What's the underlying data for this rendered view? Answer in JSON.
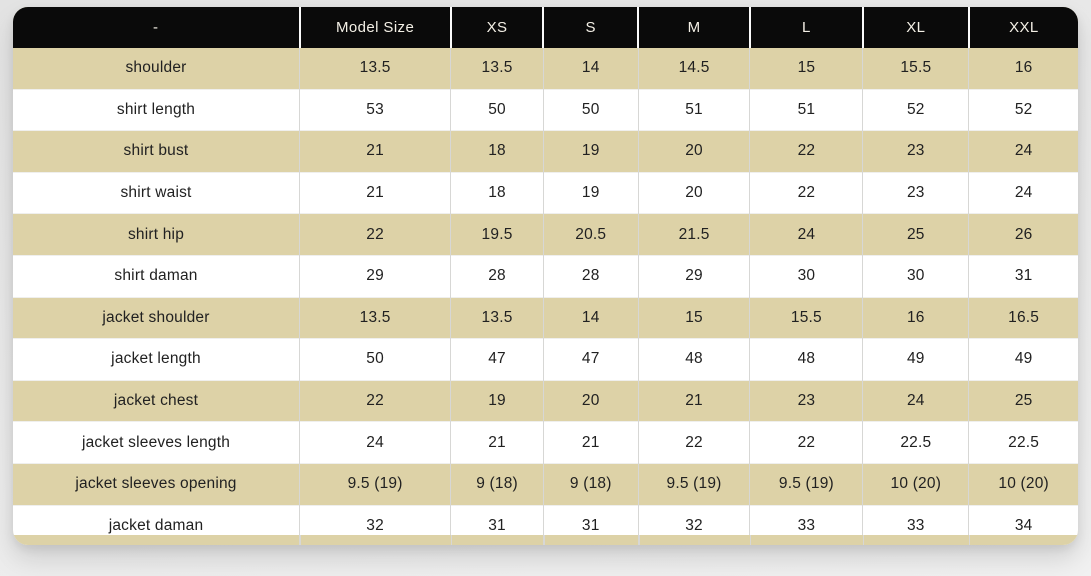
{
  "size_chart": {
    "columns": [
      "-",
      "Model Size",
      "XS",
      "S",
      "M",
      "L",
      "XL",
      "XXL"
    ],
    "rows": [
      {
        "label": "shoulder",
        "values": [
          "13.5",
          "13.5",
          "14",
          "14.5",
          "15",
          "15.5",
          "16"
        ]
      },
      {
        "label": "shirt length",
        "values": [
          "53",
          "50",
          "50",
          "51",
          "51",
          "52",
          "52"
        ]
      },
      {
        "label": "shirt bust",
        "values": [
          "21",
          "18",
          "19",
          "20",
          "22",
          "23",
          "24"
        ]
      },
      {
        "label": "shirt waist",
        "values": [
          "21",
          "18",
          "19",
          "20",
          "22",
          "23",
          "24"
        ]
      },
      {
        "label": "shirt hip",
        "values": [
          "22",
          "19.5",
          "20.5",
          "21.5",
          "24",
          "25",
          "26"
        ]
      },
      {
        "label": "shirt daman",
        "values": [
          "29",
          "28",
          "28",
          "29",
          "30",
          "30",
          "31"
        ]
      },
      {
        "label": "jacket shoulder",
        "values": [
          "13.5",
          "13.5",
          "14",
          "15",
          "15.5",
          "16",
          "16.5"
        ]
      },
      {
        "label": "jacket length",
        "values": [
          "50",
          "47",
          "47",
          "48",
          "48",
          "49",
          "49"
        ]
      },
      {
        "label": "jacket chest",
        "values": [
          "22",
          "19",
          "20",
          "21",
          "23",
          "24",
          "25"
        ]
      },
      {
        "label": "jacket sleeves length",
        "values": [
          "24",
          "21",
          "21",
          "22",
          "22",
          "22.5",
          "22.5"
        ]
      },
      {
        "label": "jacket sleeves opening",
        "values": [
          "9.5 (19)",
          "9 (18)",
          "9 (18)",
          "9.5 (19)",
          "9.5 (19)",
          "10 (20)",
          "10 (20)"
        ]
      },
      {
        "label": "jacket daman",
        "values": [
          "32",
          "31",
          "31",
          "32",
          "33",
          "33",
          "34"
        ]
      }
    ],
    "colors": {
      "header_bg": "#0a0a0a",
      "header_text": "#f4f0e6",
      "alt_row_bg": "#ddd2a7",
      "row_bg": "#ffffff",
      "body_text": "#212121"
    }
  }
}
